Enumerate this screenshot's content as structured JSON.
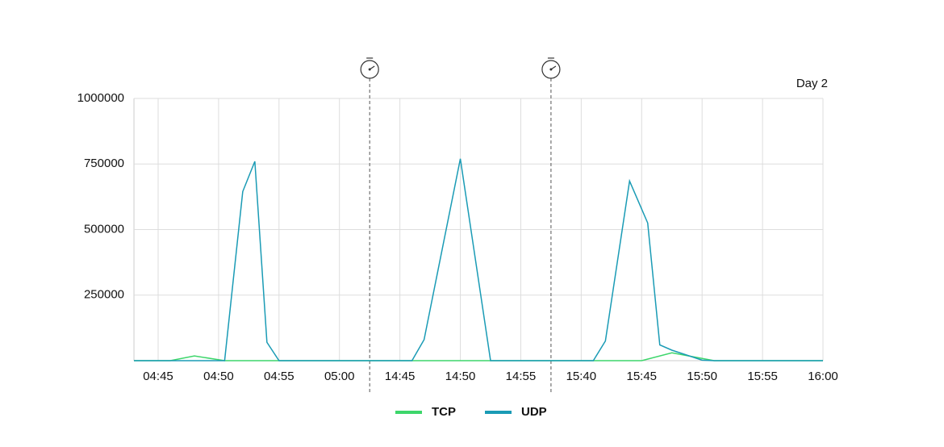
{
  "chart_data": {
    "type": "line",
    "annotation": "Day 2",
    "xlim": [
      "04:43",
      "16:00"
    ],
    "xticks": [
      "04:45",
      "04:50",
      "04:55",
      "05:00",
      "14:45",
      "14:50",
      "14:55",
      "15:40",
      "15:45",
      "15:50",
      "15:55",
      "16:00"
    ],
    "ylim": [
      0,
      1000000
    ],
    "yticks": [
      250000,
      500000,
      750000,
      1000000
    ],
    "grid": true,
    "series": [
      {
        "name": "TCP",
        "color": "#3dd66b",
        "x": [
          "04:43",
          "04:46",
          "04:48",
          "04:50:30",
          "15:45",
          "15:47:30",
          "15:51",
          "16:00"
        ],
        "values": [
          0,
          0,
          18000,
          0,
          0,
          30000,
          0,
          0
        ]
      },
      {
        "name": "UDP",
        "color": "#1a9bb5",
        "x": [
          "04:43",
          "04:50:30",
          "04:52",
          "04:53",
          "04:54",
          "04:55",
          "14:46",
          "14:47",
          "14:50",
          "14:52:30",
          "15:41",
          "15:42",
          "15:44",
          "15:45:30",
          "15:46:30",
          "15:47:30",
          "15:50",
          "15:51",
          "16:00"
        ],
        "values": [
          0,
          0,
          645000,
          760000,
          70000,
          0,
          0,
          80000,
          770000,
          0,
          0,
          75000,
          685000,
          525000,
          60000,
          40000,
          2000,
          0,
          0
        ]
      }
    ]
  }
}
